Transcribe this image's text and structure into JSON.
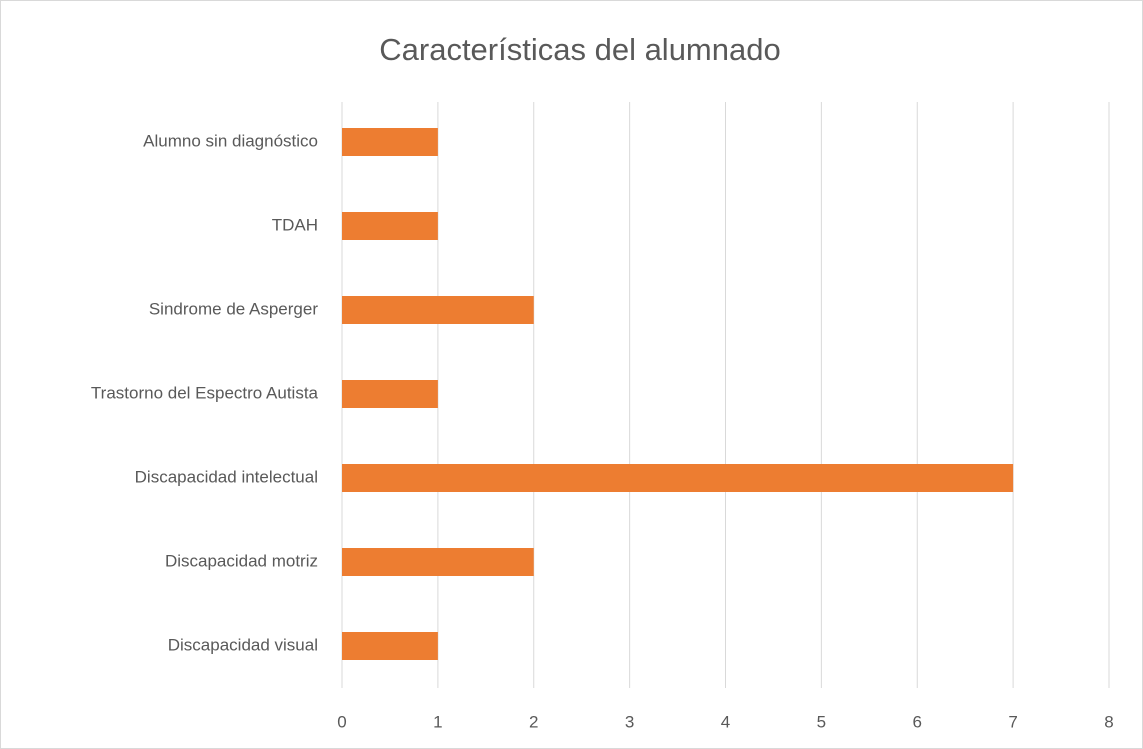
{
  "chart_data": {
    "type": "bar",
    "orientation": "horizontal",
    "title": "Características del alumnado",
    "categories": [
      "Alumno sin diagnóstico",
      "TDAH",
      "Sindrome de Asperger",
      "Trastorno del Espectro Autista",
      "Discapacidad intelectual",
      "Discapacidad motriz",
      "Discapacidad visual"
    ],
    "values": [
      1,
      1,
      2,
      1,
      7,
      2,
      1
    ],
    "color": "#ed7d31",
    "xlim": [
      0,
      8
    ],
    "xticks": [
      0,
      1,
      2,
      3,
      4,
      5,
      6,
      7,
      8
    ],
    "grid": true
  }
}
